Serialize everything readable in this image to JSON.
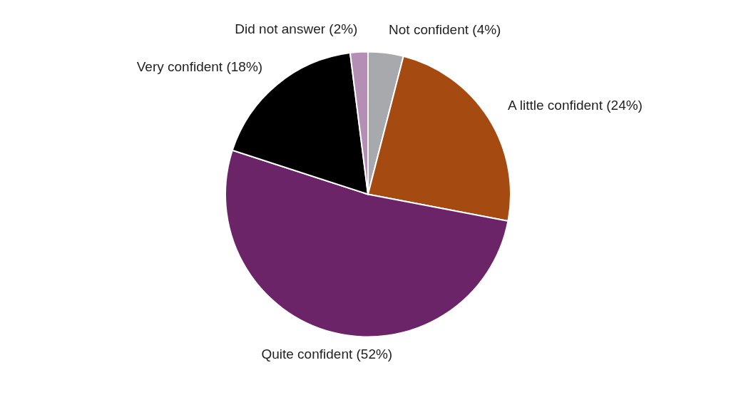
{
  "chart_data": {
    "type": "pie",
    "categories": [
      "Not confident (4%)",
      "A little confident (24%)",
      "Quite confident (52%)",
      "Very confident (18%)",
      "Did not answer (2%)"
    ],
    "values": [
      4,
      24,
      52,
      18,
      2
    ],
    "colors": [
      "#a7a9ac",
      "#a54a10",
      "#6b2468",
      "#000000",
      "#b48eb4"
    ]
  }
}
